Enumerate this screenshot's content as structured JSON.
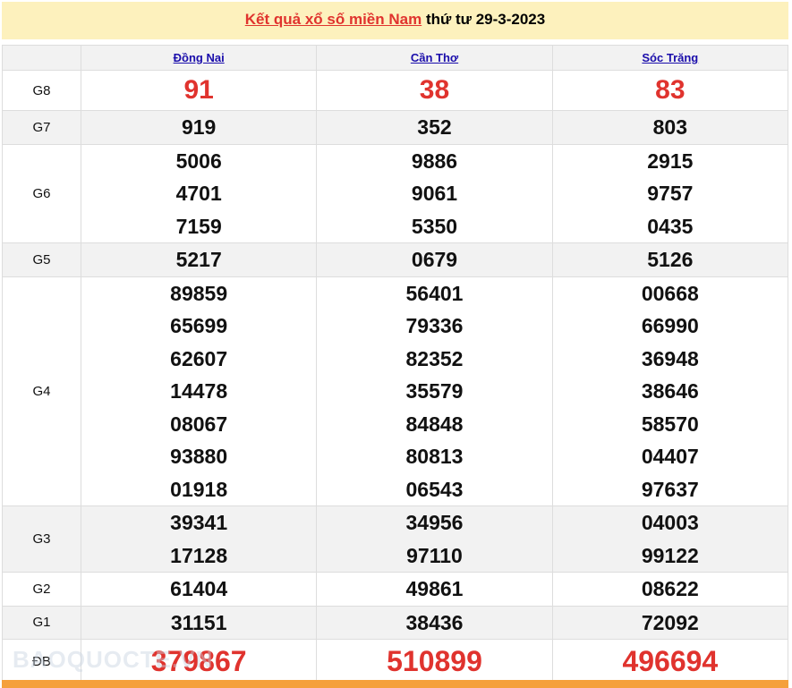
{
  "header": {
    "link_text": "Kết quả xổ số miền Nam",
    "date_text": "thứ tư 29-3-2023"
  },
  "provinces": [
    "Đồng Nai",
    "Cần Thơ",
    "Sóc Trăng"
  ],
  "prizes": [
    {
      "label": "G8",
      "values": [
        [
          "91"
        ],
        [
          "38"
        ],
        [
          "83"
        ]
      ]
    },
    {
      "label": "G7",
      "values": [
        [
          "919"
        ],
        [
          "352"
        ],
        [
          "803"
        ]
      ]
    },
    {
      "label": "G6",
      "values": [
        [
          "5006",
          "4701",
          "7159"
        ],
        [
          "9886",
          "9061",
          "5350"
        ],
        [
          "2915",
          "9757",
          "0435"
        ]
      ]
    },
    {
      "label": "G5",
      "values": [
        [
          "5217"
        ],
        [
          "0679"
        ],
        [
          "5126"
        ]
      ]
    },
    {
      "label": "G4",
      "values": [
        [
          "89859",
          "65699",
          "62607",
          "14478",
          "08067",
          "93880",
          "01918"
        ],
        [
          "56401",
          "79336",
          "82352",
          "35579",
          "84848",
          "80813",
          "06543"
        ],
        [
          "00668",
          "66990",
          "36948",
          "38646",
          "58570",
          "04407",
          "97637"
        ]
      ]
    },
    {
      "label": "G3",
      "values": [
        [
          "39341",
          "17128"
        ],
        [
          "34956",
          "97110"
        ],
        [
          "04003",
          "99122"
        ]
      ]
    },
    {
      "label": "G2",
      "values": [
        [
          "61404"
        ],
        [
          "49861"
        ],
        [
          "08622"
        ]
      ]
    },
    {
      "label": "G1",
      "values": [
        [
          "31151"
        ],
        [
          "38436"
        ],
        [
          "72092"
        ]
      ]
    },
    {
      "label": "ĐB",
      "values": [
        [
          "379867"
        ],
        [
          "510899"
        ],
        [
          "496694"
        ]
      ]
    }
  ],
  "watermark": "BAOQUOCTE.VN",
  "colors": {
    "accent": "#e0332e",
    "header_bg": "#fdf1bd",
    "footer_bar": "#f5a03c"
  }
}
